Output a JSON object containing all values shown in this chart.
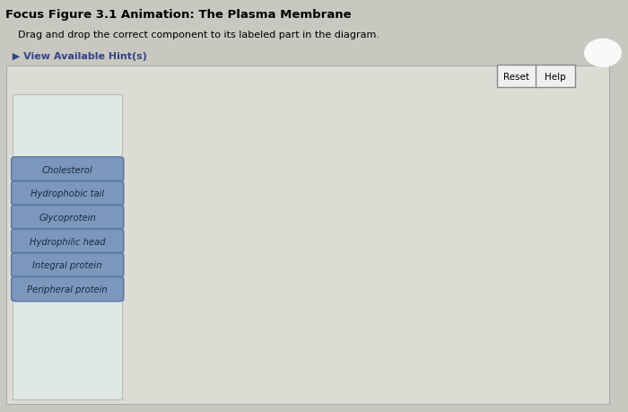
{
  "title": "Focus Figure 3.1 Animation: The Plasma Membrane",
  "subtitle": "    Drag and drop the correct component to its labeled part in the diagram.",
  "hint_text": "  ▶ View Available Hint(s)",
  "page_bg": "#c8c8c0",
  "outer_box_bg": "#d8d8d0",
  "inner_left_bg": "#d0d8d8",
  "button_color": "#7090b8",
  "button_text_color": "#1a2840",
  "button_labels": [
    "Cholesterol",
    "Hydrophobic tail",
    "Glycoprotein",
    "Hydrophilic head",
    "Integral protein",
    "Peripheral protein"
  ],
  "swirl_seed": 0
}
